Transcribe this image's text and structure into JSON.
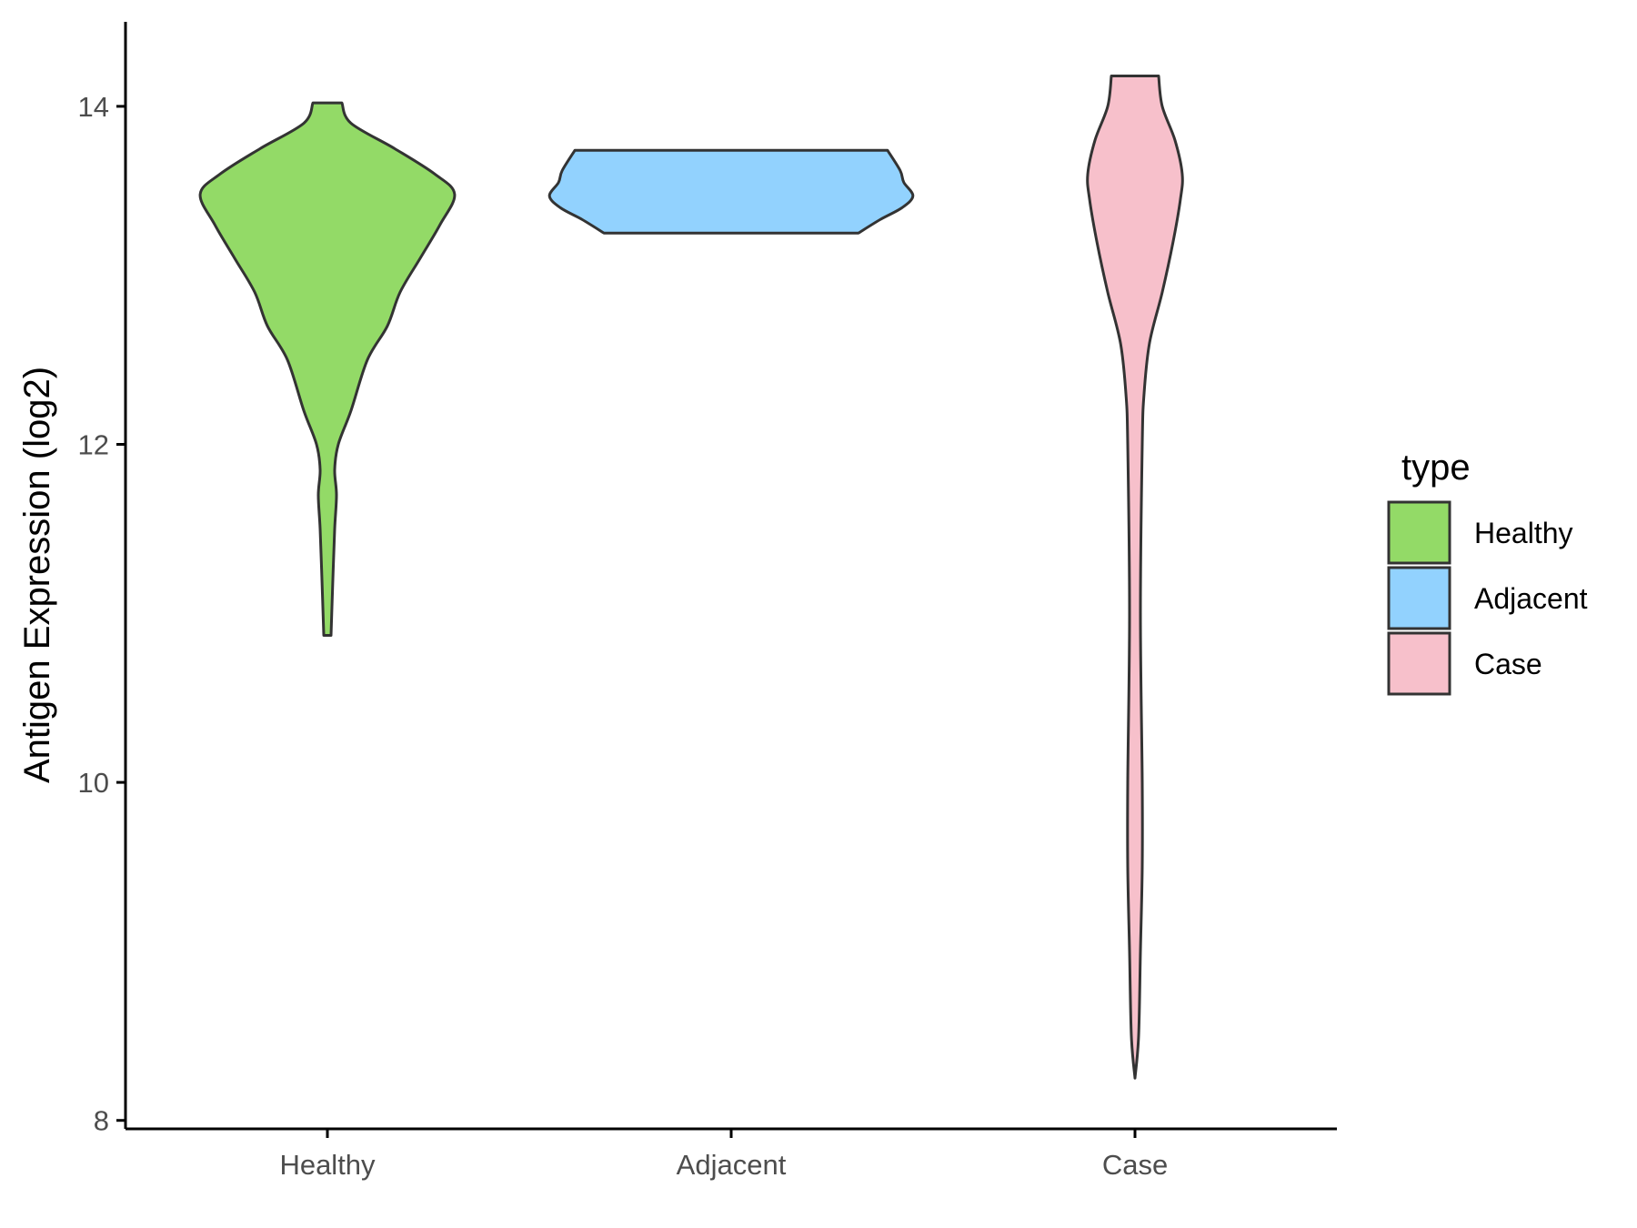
{
  "chart_data": {
    "type": "violin",
    "ylabel": "Antigen Expression (log2)",
    "xlabel": "",
    "ylim": [
      7.95,
      14.5
    ],
    "yticks": [
      8,
      10,
      12,
      14
    ],
    "categories": [
      "Healthy",
      "Adjacent",
      "Case"
    ],
    "legend": {
      "title": "type",
      "position": "right"
    },
    "grid": false,
    "series": [
      {
        "name": "Healthy",
        "color": "#93DA67",
        "min": 10.87,
        "max": 14.02,
        "density": [
          [
            10.87,
            0.02
          ],
          [
            11.2,
            0.03
          ],
          [
            11.5,
            0.04
          ],
          [
            11.7,
            0.05
          ],
          [
            11.85,
            0.04
          ],
          [
            12.0,
            0.06
          ],
          [
            12.2,
            0.13
          ],
          [
            12.5,
            0.22
          ],
          [
            12.7,
            0.33
          ],
          [
            12.9,
            0.4
          ],
          [
            13.1,
            0.51
          ],
          [
            13.3,
            0.62
          ],
          [
            13.48,
            0.7
          ],
          [
            13.6,
            0.59
          ],
          [
            13.75,
            0.37
          ],
          [
            13.9,
            0.13
          ],
          [
            14.02,
            0.08
          ]
        ]
      },
      {
        "name": "Adjacent",
        "color": "#92D2FE",
        "min": 13.25,
        "max": 13.74,
        "density": [
          [
            13.25,
            0.7
          ],
          [
            13.33,
            0.82
          ],
          [
            13.4,
            0.94
          ],
          [
            13.47,
            1.0
          ],
          [
            13.55,
            0.95
          ],
          [
            13.62,
            0.93
          ],
          [
            13.74,
            0.86
          ]
        ]
      },
      {
        "name": "Case",
        "color": "#F7C0CB",
        "min": 8.25,
        "max": 14.18,
        "density": [
          [
            8.25,
            0.0
          ],
          [
            8.5,
            0.02
          ],
          [
            9.0,
            0.03
          ],
          [
            9.5,
            0.04
          ],
          [
            10.0,
            0.04
          ],
          [
            11.0,
            0.03
          ],
          [
            12.0,
            0.04
          ],
          [
            12.3,
            0.05
          ],
          [
            12.6,
            0.08
          ],
          [
            12.9,
            0.15
          ],
          [
            13.2,
            0.21
          ],
          [
            13.45,
            0.25
          ],
          [
            13.6,
            0.26
          ],
          [
            13.8,
            0.22
          ],
          [
            14.0,
            0.15
          ],
          [
            14.18,
            0.13
          ]
        ]
      }
    ]
  }
}
